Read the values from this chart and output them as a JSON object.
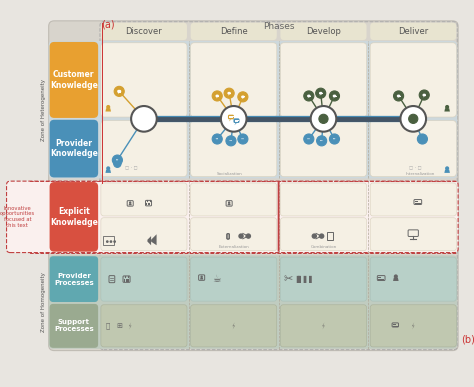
{
  "title": "Phases",
  "label_a": "(a)",
  "label_b": "(b)",
  "phases": [
    "Discover",
    "Define",
    "Develop",
    "Deliver"
  ],
  "bg_outer": "#e8e5e0",
  "bg_main": "#d8d4cc",
  "phase_header_color": "#e8e4d0",
  "phase_text_color": "#555555",
  "hetero_bg": "#cdd8dc",
  "hetero_label": "Zone of Heterogeneity",
  "cust_label": "Customer\nKnowledge",
  "cust_bg": "#e8a030",
  "prov_label": "Provider\nKnowledge",
  "prov_bg": "#4a90b8",
  "row_content_bg": "#f5f0e4",
  "innov_label": "Innovative\nopportunities\nfocused at\nthis text",
  "innov_color": "#c04040",
  "explicit_label": "Explicit\nKnowledge",
  "explicit_bg": "#d85040",
  "homo_bg": "#c0ccc0",
  "homo_label": "Zone of Homogeneity",
  "prov_proc_label": "Provider\nProcesses",
  "prov_proc_bg": "#60a8b0",
  "prov_proc_row_bg": "#b8d0c8",
  "supp_proc_label": "Support\nProcesses",
  "supp_proc_bg": "#9aaa90",
  "supp_proc_row_bg": "#c0c8b0",
  "node_cust": "#d4a030",
  "node_prov": "#4a90b8",
  "node_dark": "#4a6040",
  "node_white": "#ffffff",
  "node_border": "#555555",
  "icon_color": "#666666",
  "icon_color2": "#888880",
  "line_color": "#888880",
  "dashed_color": "#c04040",
  "socialization_text": "Socialization",
  "internalization_text": "Internalization",
  "externalization_text": "Externalization",
  "combination_text": "Combination"
}
